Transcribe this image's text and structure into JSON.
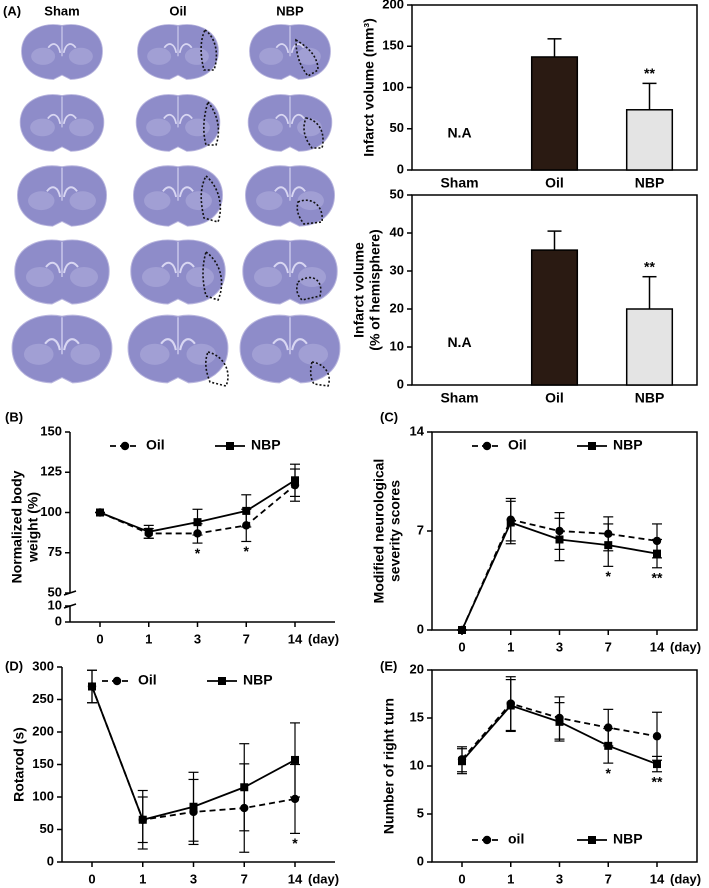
{
  "image_panel": {
    "label": "(A)",
    "columns": [
      "Sham",
      "Oil",
      "NBP"
    ]
  },
  "chart_data": [
    {
      "type": "bar",
      "ylabel": [
        "Infarct volume (mm³)"
      ],
      "categories": [
        "Sham",
        "Oil",
        "NBP"
      ],
      "values": [
        null,
        137,
        73
      ],
      "errors": [
        null,
        22,
        32
      ],
      "colors": [
        null,
        "#2a1a12",
        "#e4e4e4"
      ],
      "value_annotations": [
        "N.A",
        null,
        "**"
      ],
      "ylim": [
        0,
        200
      ],
      "yticks": [
        0,
        50,
        100,
        150,
        200
      ]
    },
    {
      "type": "bar",
      "ylabel": [
        "Infarct volume",
        "(% of hemisphere)"
      ],
      "categories": [
        "Sham",
        "Oil",
        "NBP"
      ],
      "values": [
        null,
        35.5,
        20
      ],
      "errors": [
        null,
        5,
        8.5
      ],
      "colors": [
        null,
        "#2a1a12",
        "#e4e4e4"
      ],
      "value_annotations": [
        "N.A",
        null,
        "**"
      ],
      "ylim": [
        0,
        50
      ],
      "yticks": [
        0,
        10,
        20,
        30,
        40,
        50
      ]
    },
    {
      "type": "line",
      "panel": "(B)",
      "ylabel": [
        "Normalized body",
        "weight (%)"
      ],
      "xlabel": "(day)",
      "categories": [
        "0",
        "1",
        "3",
        "7",
        "14"
      ],
      "series": [
        {
          "name": "Oil",
          "color": "#000000",
          "marker": "circle",
          "dashed": true,
          "values": [
            100,
            87,
            87,
            92,
            117
          ],
          "errors": [
            0,
            3,
            6,
            10,
            10
          ],
          "annotations": [
            null,
            null,
            "*",
            "*",
            null
          ]
        },
        {
          "name": "NBP",
          "color": "#000000",
          "marker": "square",
          "dashed": false,
          "values": [
            100,
            88,
            94,
            101,
            120
          ],
          "errors": [
            0,
            4,
            8,
            10,
            10
          ]
        }
      ],
      "ylim": [
        0,
        150
      ],
      "yticks": [
        0,
        10,
        50,
        75,
        100,
        125,
        150
      ],
      "y_break": [
        10,
        50
      ],
      "legend": "top"
    },
    {
      "type": "line",
      "panel": "(C)",
      "ylabel": [
        "Modified neurological",
        "severity scores"
      ],
      "xlabel": "(day)",
      "categories": [
        "0",
        "1",
        "3",
        "7",
        "14"
      ],
      "series": [
        {
          "name": "Oil",
          "color": "#000000",
          "marker": "circle",
          "dashed": true,
          "values": [
            0,
            7.8,
            7.0,
            6.8,
            6.3
          ],
          "errors": [
            0,
            1.5,
            1.3,
            1.2,
            1.2
          ]
        },
        {
          "name": "NBP",
          "color": "#000000",
          "marker": "square",
          "dashed": false,
          "values": [
            0,
            7.6,
            6.4,
            6.0,
            5.4
          ],
          "errors": [
            0,
            1.5,
            1.5,
            1.5,
            1.0
          ],
          "annotations": [
            null,
            null,
            null,
            "*",
            "**"
          ]
        }
      ],
      "ylim": [
        0,
        14
      ],
      "yticks": [
        0,
        7,
        14
      ],
      "legend": "top"
    },
    {
      "type": "line",
      "panel": "(D)",
      "ylabel": [
        "Rotarod (s)"
      ],
      "xlabel": "(day)",
      "categories": [
        "0",
        "1",
        "3",
        "7",
        "14"
      ],
      "series": [
        {
          "name": "Oil",
          "color": "#000000",
          "marker": "circle",
          "dashed": true,
          "values": [
            270,
            65,
            77,
            83,
            97
          ],
          "errors": [
            25,
            45,
            50,
            68,
            53
          ],
          "annotations": [
            null,
            null,
            null,
            null,
            "*"
          ]
        },
        {
          "name": "NBP",
          "color": "#000000",
          "marker": "square",
          "dashed": false,
          "values": [
            270,
            65,
            85,
            115,
            157
          ],
          "errors": [
            25,
            35,
            53,
            67,
            57
          ]
        }
      ],
      "ylim": [
        0,
        300
      ],
      "yticks": [
        0,
        50,
        100,
        150,
        200,
        250,
        300
      ],
      "legend": "top"
    },
    {
      "type": "line",
      "panel": "(E)",
      "ylabel": [
        "Number of right turn"
      ],
      "xlabel": "(day)",
      "categories": [
        "0",
        "1",
        "3",
        "7",
        "14"
      ],
      "series": [
        {
          "name": "oil",
          "color": "#000000",
          "marker": "circle",
          "dashed": true,
          "values": [
            10.7,
            16.5,
            15.0,
            14.0,
            13.1
          ],
          "errors": [
            1.3,
            2.8,
            2.2,
            1.9,
            2.5
          ]
        },
        {
          "name": "NBP",
          "color": "#000000",
          "marker": "square",
          "dashed": false,
          "values": [
            10.5,
            16.3,
            14.6,
            12.1,
            10.2
          ],
          "errors": [
            1.3,
            2.7,
            2.0,
            1.8,
            0.8
          ],
          "annotations": [
            null,
            null,
            null,
            "*",
            "**"
          ]
        }
      ],
      "ylim": [
        0,
        20
      ],
      "yticks": [
        0,
        5,
        10,
        15,
        20
      ],
      "legend": "bottom"
    }
  ]
}
